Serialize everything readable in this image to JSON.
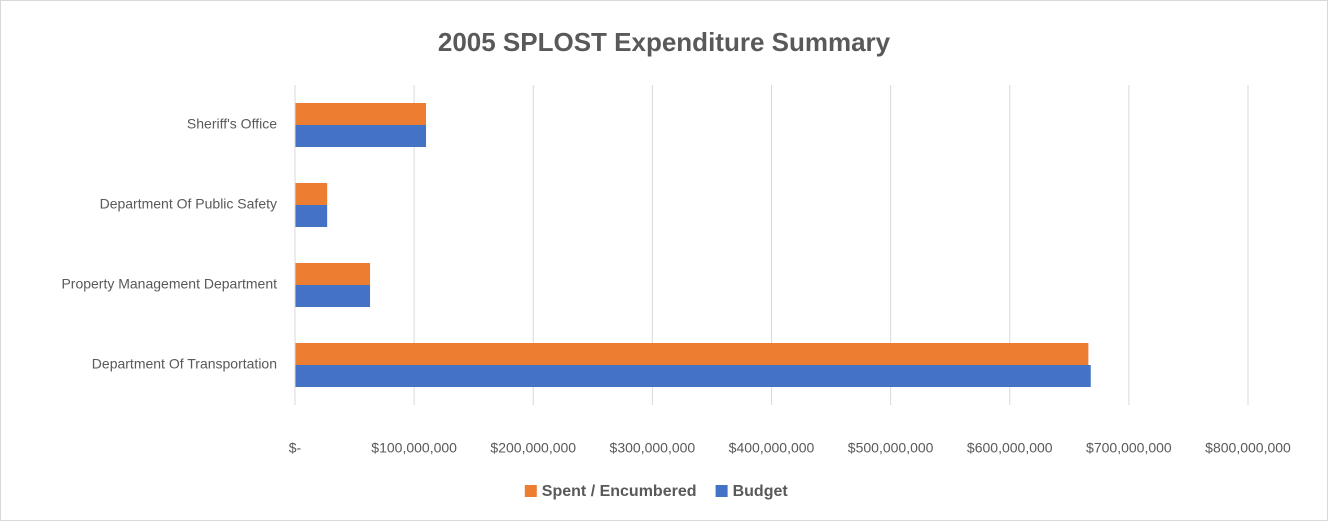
{
  "chart_data": {
    "type": "bar",
    "orientation": "horizontal",
    "title": "2005 SPLOST Expenditure Summary",
    "categories": [
      "Sheriff's Office",
      "Department Of Public Safety",
      "Property Management Department",
      "Department Of Transportation"
    ],
    "series": [
      {
        "name": "Spent / Encumbered",
        "color": "#ed7d31",
        "values": [
          110000000,
          27000000,
          63000000,
          666000000
        ]
      },
      {
        "name": "Budget",
        "color": "#4472c4",
        "values": [
          110000000,
          27000000,
          63000000,
          668000000
        ]
      }
    ],
    "xlim": [
      0,
      800000000
    ],
    "xticks": [
      {
        "value": 0,
        "label": "$-"
      },
      {
        "value": 100000000,
        "label": "$100,000,000"
      },
      {
        "value": 200000000,
        "label": "$200,000,000"
      },
      {
        "value": 300000000,
        "label": "$300,000,000"
      },
      {
        "value": 400000000,
        "label": "$400,000,000"
      },
      {
        "value": 500000000,
        "label": "$500,000,000"
      },
      {
        "value": 600000000,
        "label": "$600,000,000"
      },
      {
        "value": 700000000,
        "label": "$700,000,000"
      },
      {
        "value": 800000000,
        "label": "$800,000,000"
      }
    ],
    "grid": true,
    "legend": "bottom"
  }
}
